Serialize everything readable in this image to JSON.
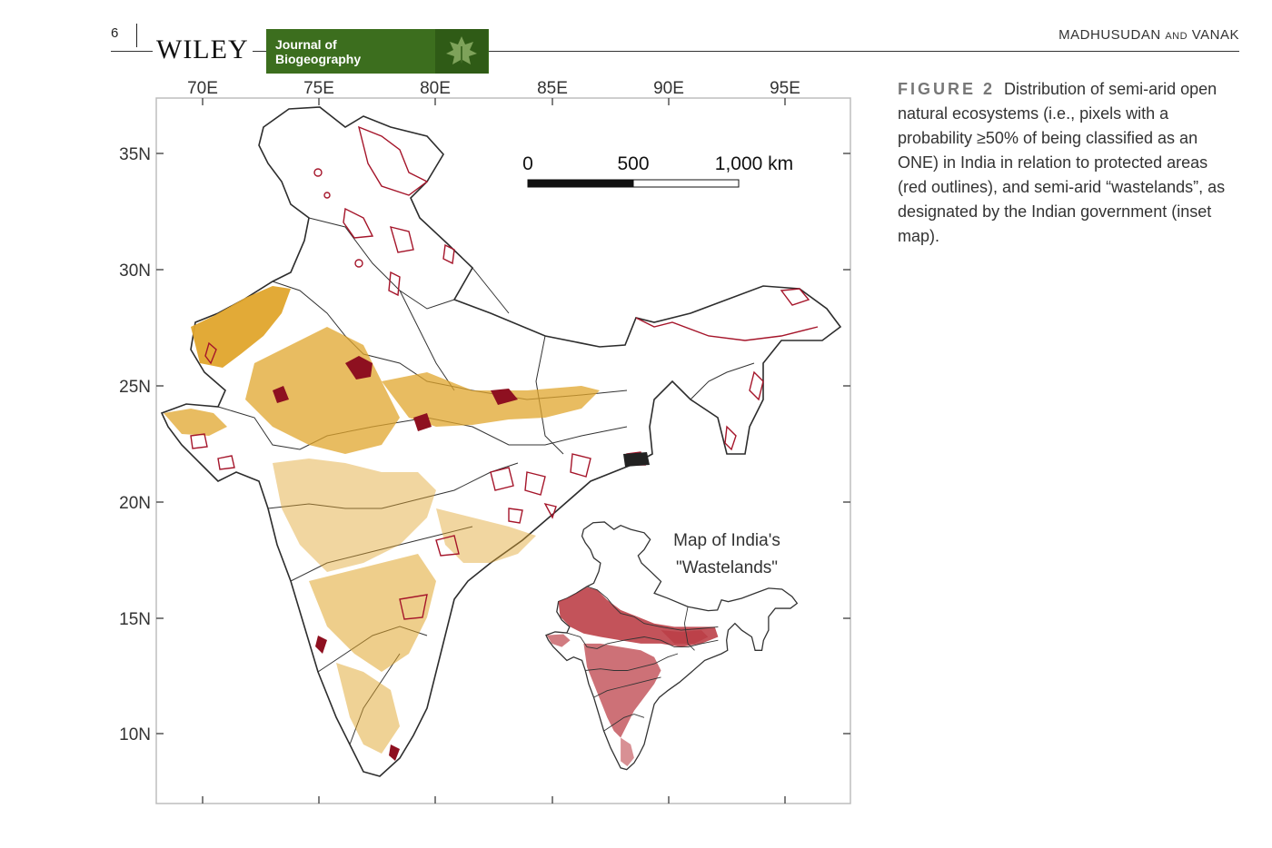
{
  "header": {
    "page_number": "6",
    "publisher": "WILEY",
    "journal_line1": "Journal of",
    "journal_line2": "Biogeography",
    "authors_a": "MADHUSUDAN",
    "authors_and": "AND",
    "authors_b": "VANAK"
  },
  "figure": {
    "lon_ticks": [
      "70E",
      "75E",
      "80E",
      "85E",
      "90E",
      "95E"
    ],
    "lat_ticks": [
      "35N",
      "30N",
      "25N",
      "20N",
      "15N",
      "10N"
    ],
    "scale_bar": {
      "start": "0",
      "mid": "500",
      "end": "1,000 km"
    },
    "inset_title_line1": "Map of India's",
    "inset_title_line2": "\"Wastelands\"",
    "colors": {
      "open_ecosystems": "#e0a52c",
      "protected_areas": "#a5152a",
      "wastelands": "#b8353d",
      "boundaries": "#333333",
      "badge_green": "#3c6e1e"
    }
  },
  "caption": {
    "label": "FIGURE 2",
    "text": "Distribution of semi-arid open natural ecosystems (i.e., pixels with a probability ≥50% of being classified as an ONE) in India in relation to protected areas (red outlines), and semi-arid “wastelands”, as designated by the Indian government (inset map)."
  }
}
